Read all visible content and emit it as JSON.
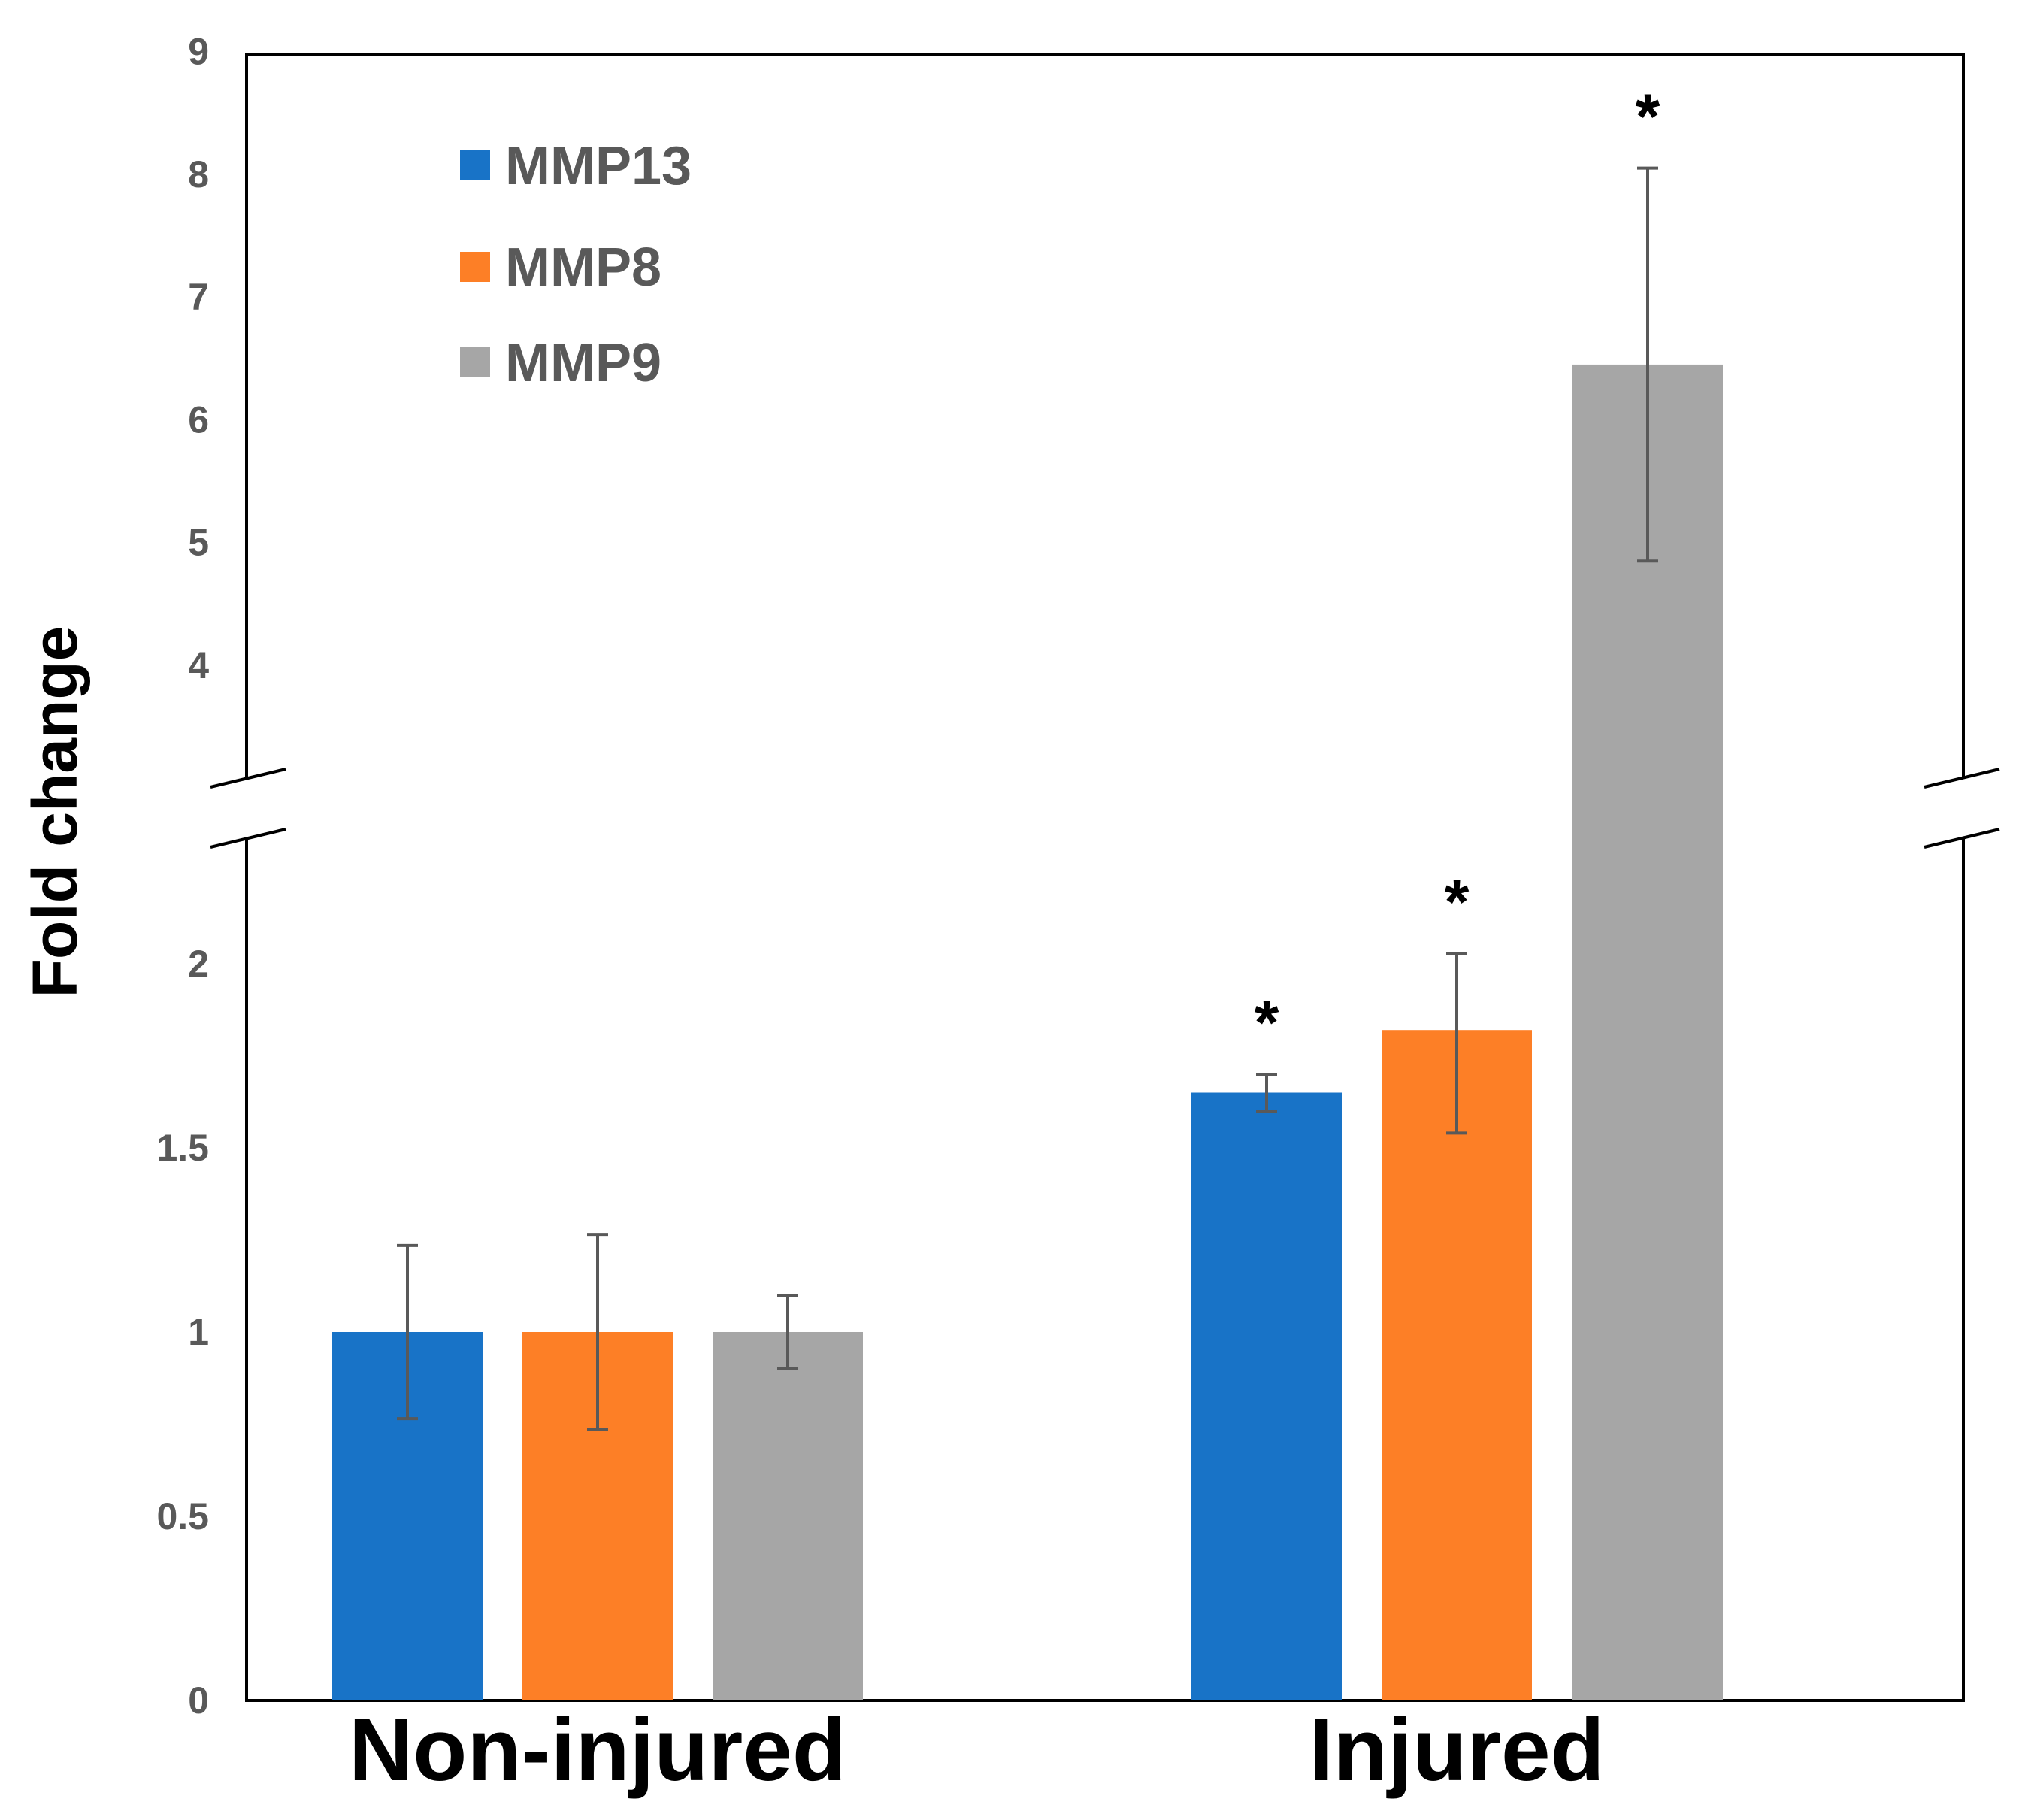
{
  "chart_data": {
    "type": "bar",
    "ylabel": "Fold change",
    "axis_break": {
      "between": [
        2.3,
        3.4
      ]
    },
    "yticks_lower": [
      "0",
      "0.5",
      "1",
      "1.5",
      "2"
    ],
    "yticks_upper": [
      "4",
      "5",
      "6",
      "7",
      "8",
      "9"
    ],
    "ylim": [
      0,
      9
    ],
    "categories": [
      "Non-injured",
      "Injured"
    ],
    "series": [
      {
        "name": "MMP13",
        "color": "#1873C7",
        "values": [
          1.0,
          1.65
        ],
        "errors": [
          0.235,
          0.05
        ],
        "significance": [
          "",
          "*"
        ]
      },
      {
        "name": "MMP8",
        "color": "#FD7F26",
        "values": [
          1.0,
          1.82
        ],
        "errors": [
          0.265,
          0.28
        ],
        "significance": [
          "",
          "*"
        ]
      },
      {
        "name": "MMP9",
        "color": "#A6A6A6",
        "values": [
          1.0,
          6.45
        ],
        "errors": [
          0.1,
          1.6
        ],
        "significance": [
          "",
          "*"
        ]
      }
    ],
    "legend_position": "top-left"
  }
}
